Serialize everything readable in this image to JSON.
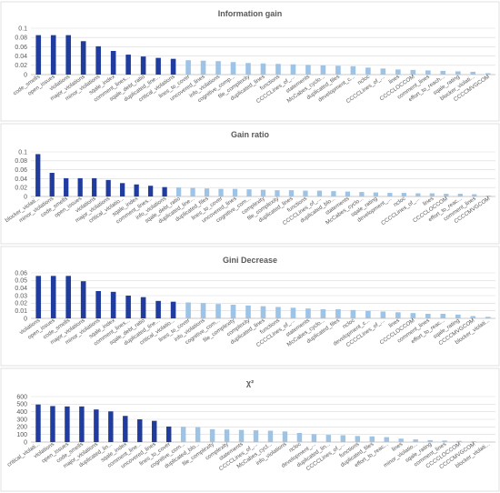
{
  "colors": {
    "highlight": "#1F3C9E",
    "normal": "#9DC3E6"
  },
  "chart_data": [
    {
      "type": "bar",
      "title": "Information gain",
      "ylim": [
        0,
        0.1
      ],
      "yticks": [
        0,
        0.02,
        0.04,
        0.06,
        0.08,
        0.1
      ],
      "grid": true,
      "highlighted_count": 10,
      "categories": [
        "code_smells",
        "open_issues",
        "violations",
        "major_violations",
        "minor_violations",
        "sqale_index",
        "comment_lines...",
        "sqale_debt_ratio",
        "duplicated_line...",
        "critical_violations",
        "lines_to_cover",
        "uncovered_lines",
        "info_violations",
        "cognitive_comp...",
        "file_complexity",
        "duplicated_lines",
        "functions",
        "CCCCLines_of_...",
        "statements",
        "McCabes_cyclo...",
        "duplicated_files",
        "development_c...",
        "ncloc",
        "CCCCLines_of_...",
        "lines",
        "CCCCLOCCOM",
        "comment_lines",
        "effort_to_reach...",
        "sqale_rating",
        "blocker_violati...",
        "CCCCMVGCOM"
      ],
      "values": [
        0.085,
        0.085,
        0.085,
        0.072,
        0.061,
        0.051,
        0.043,
        0.039,
        0.036,
        0.034,
        0.031,
        0.03,
        0.029,
        0.027,
        0.025,
        0.024,
        0.023,
        0.022,
        0.021,
        0.02,
        0.019,
        0.018,
        0.015,
        0.013,
        0.011,
        0.01,
        0.009,
        0.008,
        0.007,
        0.006,
        0.003
      ]
    },
    {
      "type": "bar",
      "title": "Gain ratio",
      "ylim": [
        0,
        0.1
      ],
      "yticks": [
        0,
        0.02,
        0.04,
        0.06,
        0.08,
        0.1
      ],
      "grid": true,
      "highlighted_count": 10,
      "categories": [
        "blocker_violati...",
        "minor_violations",
        "code_smells",
        "open_issues",
        "violations",
        "major_violations",
        "critical_violatio...",
        "sqale_index",
        "comment_lines...",
        "info_violations",
        "sqale_debt_ratio",
        "duplicated_line...",
        "duplicated_files",
        "lines_to_cover",
        "uncovered_lines",
        "cognitive_com...",
        "complexity",
        "file_complexity",
        "duplicated_lines",
        "functions",
        "CCCCLines_of_...",
        "duplicated_blo...",
        "statements",
        "McCabes_cyclo...",
        "sqale_rating",
        "development_...",
        "ncloc",
        "CCCCLines_of_...",
        "lines",
        "CCCCLOCCOM",
        "effort_to_reac...",
        "comment_lines",
        "CCCCMVGCOM"
      ],
      "values": [
        0.095,
        0.053,
        0.041,
        0.041,
        0.041,
        0.037,
        0.03,
        0.027,
        0.024,
        0.021,
        0.02,
        0.019,
        0.018,
        0.017,
        0.017,
        0.016,
        0.015,
        0.014,
        0.014,
        0.013,
        0.013,
        0.012,
        0.011,
        0.01,
        0.009,
        0.008,
        0.008,
        0.007,
        0.007,
        0.006,
        0.006,
        0.005,
        0.002
      ]
    },
    {
      "type": "bar",
      "title": "Gini Decrease",
      "ylim": [
        0,
        0.06
      ],
      "yticks": [
        0,
        0.01,
        0.02,
        0.03,
        0.04,
        0.05,
        0.06
      ],
      "grid": true,
      "highlighted_count": 10,
      "categories": [
        "violations",
        "open_issues",
        "code_smells",
        "major_violations",
        "minor_violations",
        "sqale_index",
        "comment_lines...",
        "sqale_debt_ratio",
        "duplicated_line...",
        "critical_violatio...",
        "lines_to_cover",
        "info_violations",
        "cognitive_com...",
        "file_complexity",
        "complexity",
        "duplicated_lines",
        "functions",
        "CCCCLines_of_...",
        "statements",
        "McCabes_cyclo...",
        "duplicated_files",
        "ncloc",
        "development_c...",
        "CCCCLines_of_...",
        "lines",
        "CCCCLOCCOM",
        "comment_lines",
        "effort_to_reac...",
        "sqale_rating",
        "CCCCMVGCOM",
        "blocker_violati..."
      ],
      "values": [
        0.056,
        0.056,
        0.056,
        0.049,
        0.036,
        0.035,
        0.03,
        0.028,
        0.023,
        0.022,
        0.021,
        0.02,
        0.019,
        0.018,
        0.017,
        0.016,
        0.015,
        0.014,
        0.013,
        0.012,
        0.012,
        0.011,
        0.01,
        0.009,
        0.008,
        0.007,
        0.006,
        0.006,
        0.005,
        0.003,
        0.002
      ]
    },
    {
      "type": "bar",
      "title": "χ²",
      "ylim": [
        0,
        600
      ],
      "yticks": [
        0,
        100,
        200,
        300,
        400,
        500,
        600
      ],
      "grid": true,
      "highlighted_count": 10,
      "categories": [
        "critical_violati...",
        "violations",
        "open_issues",
        "code_smells",
        "major_violations",
        "duplicated_lin...",
        "sqale_index",
        "comment_line...",
        "uncovered_lines",
        "lines_to_cover",
        "cognitive_com...",
        "duplicated_blo...",
        "file_complexity",
        "complexity",
        "statements",
        "CCCCLines_of_...",
        "McCabes_cycl...",
        "info_violations",
        "ncloc",
        "development_...",
        "duplicated_lin...",
        "CCCCLines_of_...",
        "functions",
        "duplicated_files",
        "effort_to_reac...",
        "lines",
        "minor_violatio...",
        "sqale_rating",
        "comment_lines",
        "CCCCLOCCOM",
        "CCCCMVGCOM",
        "blocker_violati..."
      ],
      "values": [
        495,
        475,
        470,
        470,
        430,
        405,
        345,
        300,
        280,
        205,
        200,
        195,
        170,
        165,
        160,
        155,
        150,
        140,
        120,
        105,
        95,
        90,
        80,
        75,
        65,
        45,
        35,
        25,
        20,
        15,
        10,
        5
      ]
    }
  ]
}
